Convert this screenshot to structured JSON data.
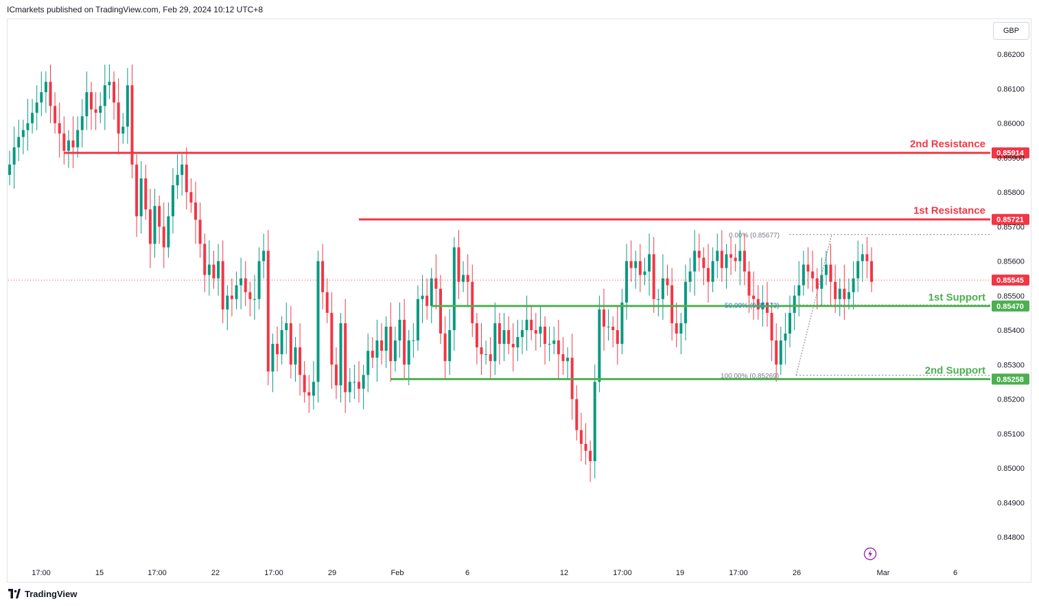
{
  "header": {
    "published": "ICmarkets published on TradingView.com, Feb 29, 2024 10:12 UTC+8"
  },
  "currency": "GBP",
  "footer": {
    "brand": "TradingView"
  },
  "colors": {
    "up": "#089981",
    "down": "#f23645",
    "resistance": "#f23645",
    "support": "#4caf50",
    "text": "#131722",
    "axis_text": "#131722"
  },
  "icons": {
    "brand": "tradingview-logo-icon",
    "alert": "lightning-icon"
  },
  "chart_data": {
    "type": "candlestick",
    "symbol_quote": "GBP",
    "ylim": [
      0.8475,
      0.8625
    ],
    "y_ticks": [
      "0.86200",
      "0.86100",
      "0.86000",
      "0.85900",
      "0.85800",
      "0.85700",
      "0.85600",
      "0.85500",
      "0.85400",
      "0.85300",
      "0.85200",
      "0.85100",
      "0.85000",
      "0.84900",
      "0.84800"
    ],
    "x_ticks": [
      "17:00",
      "15",
      "17:00",
      "22",
      "17:00",
      "29",
      "Feb",
      "6",
      "12",
      "17:00",
      "19",
      "17:00",
      "26",
      "Mar",
      "6"
    ],
    "last_price": "0.85545",
    "levels": [
      {
        "name": "2nd Resistance",
        "value": "0.85914",
        "kind": "resistance",
        "start_index": 12
      },
      {
        "name": "1st Resistance",
        "value": "0.85721",
        "kind": "resistance",
        "start_index": 77
      },
      {
        "name": "1st Support",
        "value": "0.85470",
        "kind": "support",
        "start_index": 93
      },
      {
        "name": "2nd Support",
        "value": "0.85258",
        "kind": "support",
        "start_index": 84
      }
    ],
    "fibonacci": [
      {
        "label": "0.00% (0.85677)",
        "value": 0.85677
      },
      {
        "label": "50.00% (0.85473)",
        "value": 0.85473
      },
      {
        "label": "100.00% (0.85269)",
        "value": 0.85269
      }
    ],
    "closes": [
      0.8588,
      0.8593,
      0.8596,
      0.8598,
      0.86,
      0.8603,
      0.8606,
      0.8609,
      0.8612,
      0.8605,
      0.86,
      0.8597,
      0.8592,
      0.8595,
      0.8593,
      0.8598,
      0.8602,
      0.8609,
      0.8604,
      0.8603,
      0.8605,
      0.8611,
      0.8612,
      0.8606,
      0.8597,
      0.8599,
      0.8611,
      0.8588,
      0.8573,
      0.8584,
      0.8575,
      0.8565,
      0.8576,
      0.857,
      0.8564,
      0.8573,
      0.8582,
      0.8585,
      0.8588,
      0.858,
      0.8577,
      0.8572,
      0.8565,
      0.8556,
      0.8559,
      0.8555,
      0.856,
      0.8546,
      0.855,
      0.8549,
      0.8553,
      0.8555,
      0.8551,
      0.8549,
      0.8549,
      0.856,
      0.8563,
      0.8528,
      0.8536,
      0.8533,
      0.854,
      0.8542,
      0.853,
      0.8535,
      0.8527,
      0.8522,
      0.8521,
      0.8525,
      0.856,
      0.8551,
      0.8545,
      0.853,
      0.8524,
      0.8542,
      0.8522,
      0.8525,
      0.8525,
      0.8523,
      0.8527,
      0.8534,
      0.8532,
      0.8537,
      0.8534,
      0.8541,
      0.8531,
      0.8537,
      0.8543,
      0.853,
      0.8537,
      0.8537,
      0.8549,
      0.855,
      0.8547,
      0.8555,
      0.8552,
      0.8539,
      0.8531,
      0.854,
      0.8564,
      0.8554,
      0.8556,
      0.8554,
      0.8542,
      0.8535,
      0.8533,
      0.8533,
      0.8531,
      0.8542,
      0.8536,
      0.854,
      0.8536,
      0.8535,
      0.8538,
      0.854,
      0.8543,
      0.854,
      0.8539,
      0.8541,
      0.8536,
      0.8536,
      0.8537,
      0.8533,
      0.8531,
      0.8532,
      0.852,
      0.8511,
      0.8507,
      0.8505,
      0.8502,
      0.8525,
      0.8546,
      0.8541,
      0.8541,
      0.854,
      0.8536,
      0.8548,
      0.856,
      0.8558,
      0.856,
      0.8556,
      0.8557,
      0.8562,
      0.8549,
      0.8549,
      0.8555,
      0.8553,
      0.8542,
      0.8539,
      0.8542,
      0.8554,
      0.8557,
      0.8563,
      0.8561,
      0.8558,
      0.8554,
      0.856,
      0.8563,
      0.8558,
      0.8562,
      0.8561,
      0.856,
      0.8563,
      0.8557,
      0.855,
      0.8549,
      0.8546,
      0.8548,
      0.8545,
      0.8537,
      0.853,
      0.8537,
      0.8539,
      0.8545,
      0.855,
      0.8553,
      0.8559,
      0.8557,
      0.8555,
      0.8552,
      0.8556,
      0.8559,
      0.8554,
      0.8549,
      0.8552,
      0.8549,
      0.8551,
      0.8555,
      0.856,
      0.8562,
      0.856,
      0.8554
    ]
  }
}
